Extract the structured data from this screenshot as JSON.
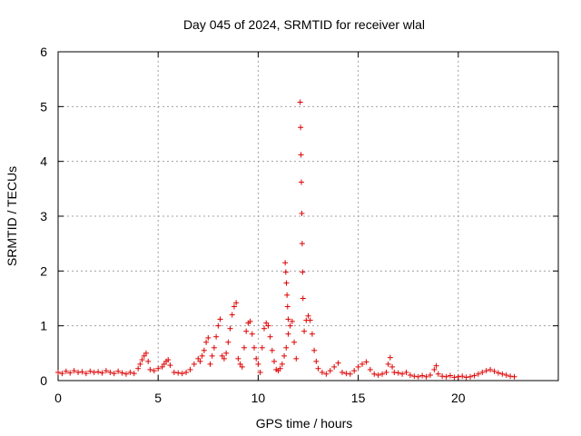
{
  "chart_data": {
    "type": "scatter",
    "title": "Day 045 of 2024, SRMTID for receiver wlal",
    "xlabel": "GPS time / hours",
    "ylabel": "SRMTID / TECUs",
    "xlim": [
      0,
      25
    ],
    "ylim": [
      0,
      6
    ],
    "xticks": [
      0,
      5,
      10,
      15,
      20
    ],
    "yticks": [
      0,
      1,
      2,
      3,
      4,
      5,
      6
    ],
    "grid": true,
    "marker": "plus",
    "marker_color": "#e00000",
    "series": [
      {
        "name": "SRMTID",
        "points": [
          [
            0.0,
            0.15
          ],
          [
            0.2,
            0.13
          ],
          [
            0.4,
            0.17
          ],
          [
            0.6,
            0.14
          ],
          [
            0.8,
            0.18
          ],
          [
            1.0,
            0.15
          ],
          [
            1.2,
            0.16
          ],
          [
            1.4,
            0.13
          ],
          [
            1.6,
            0.17
          ],
          [
            1.8,
            0.15
          ],
          [
            2.0,
            0.16
          ],
          [
            2.2,
            0.14
          ],
          [
            2.4,
            0.18
          ],
          [
            2.6,
            0.15
          ],
          [
            2.8,
            0.13
          ],
          [
            3.0,
            0.17
          ],
          [
            3.2,
            0.14
          ],
          [
            3.4,
            0.12
          ],
          [
            3.6,
            0.15
          ],
          [
            3.8,
            0.13
          ],
          [
            4.0,
            0.22
          ],
          [
            4.1,
            0.3
          ],
          [
            4.2,
            0.38
          ],
          [
            4.3,
            0.45
          ],
          [
            4.4,
            0.5
          ],
          [
            4.5,
            0.35
          ],
          [
            4.6,
            0.2
          ],
          [
            4.8,
            0.18
          ],
          [
            5.0,
            0.22
          ],
          [
            5.2,
            0.25
          ],
          [
            5.3,
            0.3
          ],
          [
            5.4,
            0.35
          ],
          [
            5.5,
            0.38
          ],
          [
            5.6,
            0.28
          ],
          [
            5.8,
            0.15
          ],
          [
            6.0,
            0.14
          ],
          [
            6.2,
            0.13
          ],
          [
            6.4,
            0.15
          ],
          [
            6.6,
            0.2
          ],
          [
            6.8,
            0.3
          ],
          [
            7.0,
            0.4
          ],
          [
            7.1,
            0.35
          ],
          [
            7.2,
            0.45
          ],
          [
            7.3,
            0.55
          ],
          [
            7.4,
            0.7
          ],
          [
            7.5,
            0.78
          ],
          [
            7.6,
            0.3
          ],
          [
            7.7,
            0.45
          ],
          [
            7.8,
            0.6
          ],
          [
            7.9,
            0.8
          ],
          [
            8.0,
            1.0
          ],
          [
            8.1,
            1.12
          ],
          [
            8.2,
            0.45
          ],
          [
            8.3,
            0.4
          ],
          [
            8.4,
            0.5
          ],
          [
            8.5,
            0.7
          ],
          [
            8.6,
            0.95
          ],
          [
            8.7,
            1.2
          ],
          [
            8.8,
            1.35
          ],
          [
            8.9,
            1.42
          ],
          [
            9.0,
            0.4
          ],
          [
            9.1,
            0.3
          ],
          [
            9.2,
            0.25
          ],
          [
            9.3,
            0.6
          ],
          [
            9.4,
            0.9
          ],
          [
            9.5,
            1.05
          ],
          [
            9.6,
            1.08
          ],
          [
            9.7,
            0.85
          ],
          [
            9.8,
            0.6
          ],
          [
            9.9,
            0.4
          ],
          [
            10.0,
            0.3
          ],
          [
            10.1,
            0.15
          ],
          [
            10.2,
            0.6
          ],
          [
            10.3,
            0.95
          ],
          [
            10.4,
            1.05
          ],
          [
            10.5,
            1.0
          ],
          [
            10.6,
            0.8
          ],
          [
            10.7,
            0.55
          ],
          [
            10.8,
            0.35
          ],
          [
            10.9,
            0.2
          ],
          [
            11.0,
            0.18
          ],
          [
            11.1,
            0.22
          ],
          [
            11.2,
            0.3
          ],
          [
            11.3,
            0.45
          ],
          [
            11.4,
            0.6
          ],
          [
            11.5,
            0.85
          ],
          [
            11.6,
            1.0
          ],
          [
            11.7,
            1.08
          ],
          [
            11.8,
            0.7
          ],
          [
            11.9,
            0.4
          ],
          [
            11.35,
            2.15
          ],
          [
            11.38,
            1.98
          ],
          [
            11.41,
            1.78
          ],
          [
            11.44,
            1.56
          ],
          [
            11.47,
            1.35
          ],
          [
            11.5,
            1.12
          ],
          [
            12.1,
            5.08
          ],
          [
            12.12,
            4.62
          ],
          [
            12.14,
            4.12
          ],
          [
            12.16,
            3.62
          ],
          [
            12.18,
            3.05
          ],
          [
            12.2,
            2.5
          ],
          [
            12.22,
            1.98
          ],
          [
            12.24,
            1.5
          ],
          [
            12.3,
            0.9
          ],
          [
            12.4,
            1.1
          ],
          [
            12.5,
            1.18
          ],
          [
            12.6,
            1.1
          ],
          [
            12.7,
            0.85
          ],
          [
            12.8,
            0.55
          ],
          [
            12.9,
            0.35
          ],
          [
            13.0,
            0.22
          ],
          [
            13.2,
            0.15
          ],
          [
            13.4,
            0.12
          ],
          [
            13.6,
            0.18
          ],
          [
            13.8,
            0.25
          ],
          [
            14.0,
            0.32
          ],
          [
            14.2,
            0.15
          ],
          [
            14.4,
            0.13
          ],
          [
            14.6,
            0.12
          ],
          [
            14.8,
            0.18
          ],
          [
            15.0,
            0.25
          ],
          [
            15.2,
            0.3
          ],
          [
            15.4,
            0.34
          ],
          [
            15.6,
            0.2
          ],
          [
            15.8,
            0.12
          ],
          [
            16.0,
            0.1
          ],
          [
            16.2,
            0.12
          ],
          [
            16.4,
            0.15
          ],
          [
            16.5,
            0.3
          ],
          [
            16.6,
            0.42
          ],
          [
            16.7,
            0.25
          ],
          [
            16.8,
            0.15
          ],
          [
            17.0,
            0.14
          ],
          [
            17.2,
            0.12
          ],
          [
            17.4,
            0.15
          ],
          [
            17.6,
            0.1
          ],
          [
            17.8,
            0.08
          ],
          [
            18.0,
            0.07
          ],
          [
            18.2,
            0.09
          ],
          [
            18.4,
            0.07
          ],
          [
            18.6,
            0.1
          ],
          [
            18.8,
            0.2
          ],
          [
            18.9,
            0.27
          ],
          [
            19.0,
            0.12
          ],
          [
            19.2,
            0.08
          ],
          [
            19.4,
            0.07
          ],
          [
            19.6,
            0.09
          ],
          [
            19.8,
            0.06
          ],
          [
            20.0,
            0.07
          ],
          [
            20.2,
            0.08
          ],
          [
            20.4,
            0.06
          ],
          [
            20.6,
            0.07
          ],
          [
            20.8,
            0.09
          ],
          [
            21.0,
            0.12
          ],
          [
            21.2,
            0.15
          ],
          [
            21.4,
            0.18
          ],
          [
            21.6,
            0.2
          ],
          [
            21.8,
            0.17
          ],
          [
            22.0,
            0.14
          ],
          [
            22.2,
            0.12
          ],
          [
            22.4,
            0.1
          ],
          [
            22.6,
            0.08
          ],
          [
            22.8,
            0.07
          ]
        ]
      }
    ]
  }
}
